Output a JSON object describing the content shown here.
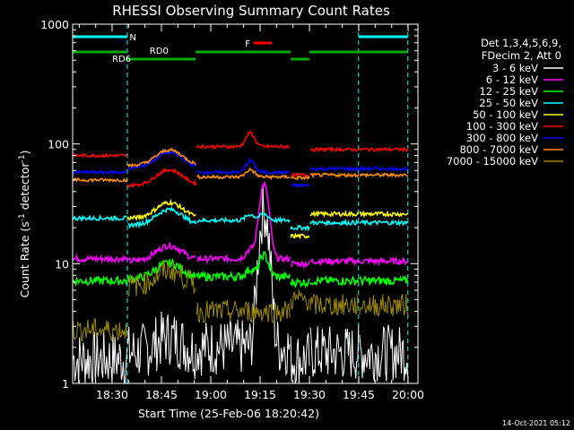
{
  "chart_data": {
    "type": "line",
    "title": "RHESSI Observing Summary Count Rates",
    "xlabel": "Start Time (25-Feb-06 18:20:42)",
    "ylabel_main": "Count Rate (s",
    "ylabel_sup1": "-1",
    "ylabel_mid": " detector",
    "ylabel_sup2": "-1",
    "ylabel_end": ")",
    "y_scale": "log",
    "ylim": [
      1,
      1000
    ],
    "xlim_minutes": [
      18.3,
      20.05
    ],
    "x_tick_labels": [
      {
        "label": "18:30",
        "t": 18.5
      },
      {
        "label": "18:45",
        "t": 18.75
      },
      {
        "label": "19:00",
        "t": 19.0
      },
      {
        "label": "19:15",
        "t": 19.25
      },
      {
        "label": "19:30",
        "t": 19.5
      },
      {
        "label": "19:45",
        "t": 19.75
      },
      {
        "label": "20:00",
        "t": 20.0
      }
    ],
    "y_tick_labels": [
      {
        "label": "1",
        "v": 1
      },
      {
        "label": "10",
        "v": 10
      },
      {
        "label": "100",
        "v": 100
      },
      {
        "label": "1000",
        "v": 1000
      }
    ],
    "legend_header": [
      "Det 1,3,4,5,6,9,",
      "FDecim 2, Att 0"
    ],
    "legend_placement": "right",
    "series": [
      {
        "name": "3 - 6 keV",
        "color": "#ffffff"
      },
      {
        "name": "6 - 12 keV",
        "color": "#ff00ff"
      },
      {
        "name": "12 - 25 keV",
        "color": "#00ff00"
      },
      {
        "name": "25 - 50 keV",
        "color": "#00ffff"
      },
      {
        "name": "50 - 100 keV",
        "color": "#ffff00"
      },
      {
        "name": "100 - 300 keV",
        "color": "#ff0000"
      },
      {
        "name": "300 - 800 keV",
        "color": "#0000ff"
      },
      {
        "name": "800 - 7000 keV",
        "color": "#ff8c00"
      },
      {
        "name": "7000 - 15000 keV",
        "color": "#9b8a00"
      }
    ],
    "annotations": [
      {
        "label": "N",
        "color": "#00ffff"
      },
      {
        "label": "RD0",
        "color": "#00aa00"
      },
      {
        "label": "RD6",
        "color": "#00aa00"
      },
      {
        "label": "F",
        "color": "#ff0000"
      }
    ],
    "footer_timestamp": "14-Oct-2021 05:12"
  }
}
